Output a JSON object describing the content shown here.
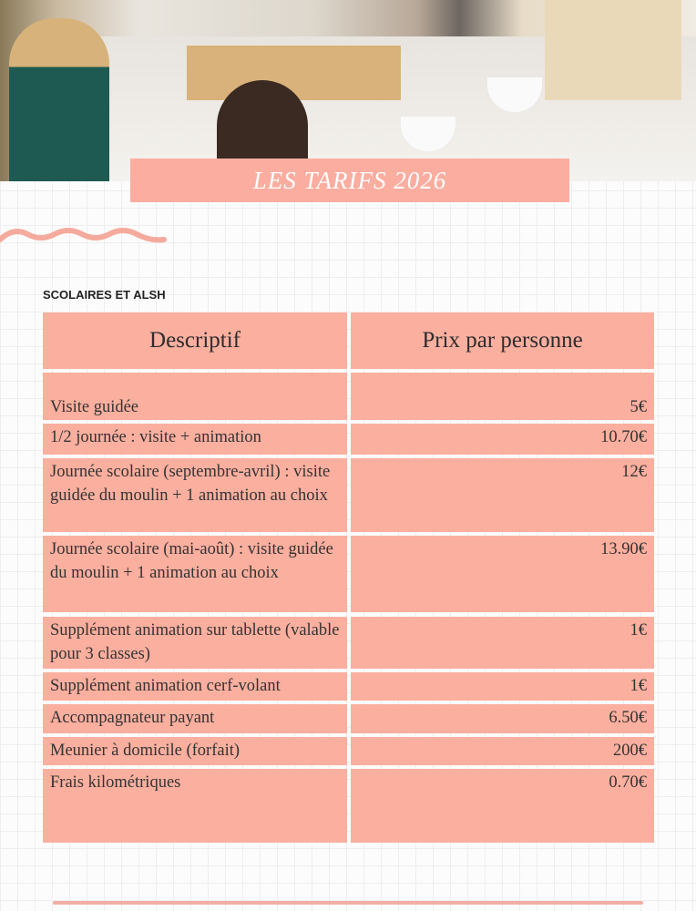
{
  "banner": {
    "title": "LES TARIFS 2026"
  },
  "section_title": "SCOLAIRES ET ALSH",
  "table": {
    "headers": [
      "Descriptif",
      "Prix par personne"
    ],
    "rows": [
      {
        "desc": "Visite guidée",
        "price": "5€"
      },
      {
        "desc": "1/2 journée : visite + animation",
        "price": "10.70€"
      },
      {
        "desc": "Journée scolaire (septembre-avril) : visite guidée du moulin + 1 animation au choix",
        "price": "12€"
      },
      {
        "desc": "Journée scolaire (mai-août) : visite guidée du moulin + 1 animation au choix",
        "price": "13.90€"
      },
      {
        "desc": "Supplément animation sur tablette (valable pour 3 classes)",
        "price": "1€"
      },
      {
        "desc": "Supplément animation cerf-volant",
        "price": "1€"
      },
      {
        "desc": "Accompagnateur payant",
        "price": "6.50€"
      },
      {
        "desc": "Meunier à domicile (forfait)",
        "price": "200€"
      },
      {
        "desc": "Frais kilométriques",
        "price": "0.70€"
      }
    ]
  },
  "colors": {
    "accent": "#fbaf9f",
    "wave": "#f4aa9c"
  }
}
